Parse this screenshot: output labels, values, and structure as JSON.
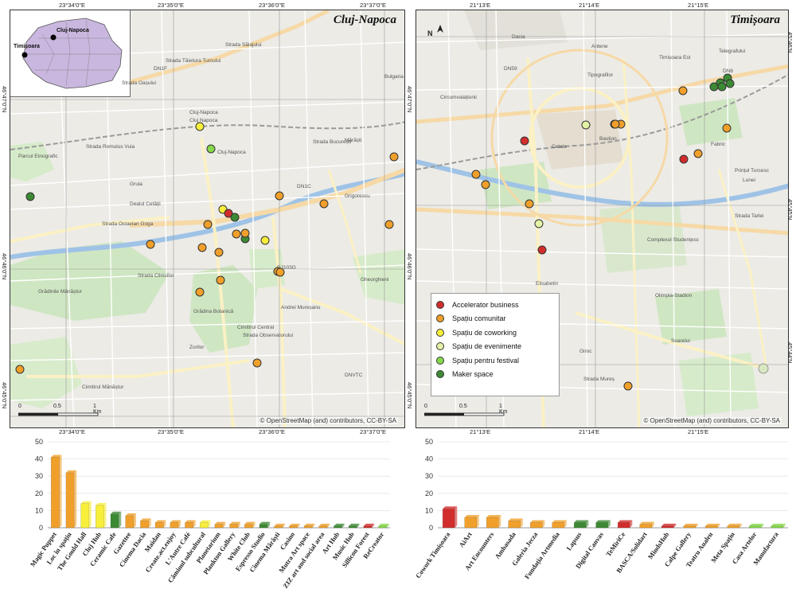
{
  "left_map": {
    "title": "Cluj-Napoca",
    "credit": "© OpenStreetMap (and) contributors, CC-BY-SA",
    "top_coords": [
      "23°34'0\"E",
      "23°35'0\"E",
      "23°36'0\"E",
      "23°37'0\"E"
    ],
    "bottom_coords": [
      "23°34'0\"E",
      "23°35'0\"E",
      "23°36'0\"E",
      "23°37'0\"E"
    ],
    "left_coords": [
      "46°47'0\"N",
      "46°46'0\"N",
      "46°45'0\"N"
    ],
    "right_coords": [
      "46°47'0\"N",
      "46°46'0\"N",
      "46°45'0\"N"
    ],
    "scale_labels": [
      "0",
      "0.5",
      "1 Km"
    ],
    "inset": {
      "label_cluj": "Cluj-Napoca",
      "label_timisoara": "Timișoara"
    },
    "street_labels": [
      "Bulgaria",
      "Strada Sălajului",
      "Strada Tăietura Turcului",
      "DN1F",
      "Strada Oașului",
      "Cluj-Napoca",
      "Cluj Napoca",
      "Strada Romulus Vuia",
      "Mărăști",
      "Strada București",
      "Cluj-Napoca",
      "DN1C",
      "Grigorescu",
      "Strada Octavian Goga",
      "Grădinile Mănăștur",
      "Strada Clinicilor",
      "Cimitirul Central",
      "Gheorghieni",
      "Andrei Mureșanu",
      "Grădina Botanică",
      "Zorilor",
      "Cimitirul Mănăștur",
      "DNVTC",
      "DJ103G",
      "Strada Observatorului",
      "Gruia",
      "Dealul Cetății",
      "Parcul Etnografic"
    ],
    "points": [
      {
        "cat": "coworking"
      },
      {
        "cat": "festival"
      },
      {
        "cat": "spatiu"
      },
      {
        "cat": "maker"
      },
      {
        "cat": "spatiu"
      },
      {
        "cat": "coworking"
      },
      {
        "cat": "accelerator"
      },
      {
        "cat": "maker"
      },
      {
        "cat": "spatiu"
      },
      {
        "cat": "spatiu"
      },
      {
        "cat": "spatiu"
      },
      {
        "cat": "spatiu"
      },
      {
        "cat": "maker"
      },
      {
        "cat": "coworking"
      },
      {
        "cat": "spatiu"
      },
      {
        "cat": "spatiu"
      },
      {
        "cat": "spatiu"
      },
      {
        "cat": "spatiu"
      },
      {
        "cat": "spatiu"
      },
      {
        "cat": "spatiu"
      },
      {
        "cat": "spatiu"
      },
      {
        "cat": "spatiu"
      },
      {
        "cat": "spatiu"
      },
      {
        "cat": "spatiu"
      }
    ]
  },
  "right_map": {
    "title": "Timișoara",
    "credit": "© OpenStreetMap (and) contributors, CC-BY-SA",
    "top_coords": [
      "21°13'E",
      "21°14'E",
      "21°15'E"
    ],
    "bottom_coords": [
      "21°13'E",
      "21°14'E",
      "21°15'E"
    ],
    "left_coords": [
      "45°46'N",
      "45°45'N",
      "45°44'N"
    ],
    "right_coords": [
      "45°46'N",
      "45°45'N",
      "45°44'N"
    ],
    "scale_labels": [
      "0",
      "0.5",
      "1 Km"
    ],
    "north_label": "N",
    "street_labels": [
      "Dacia",
      "Antene",
      "Timișoara Est",
      "Telegrafului",
      "DN6",
      "Tipografilor",
      "DN59",
      "Circumvalațiunii",
      "Cetate",
      "Bastion",
      "Fabric",
      "Prințul Turcesc",
      "Lunei",
      "Complexul Studențesc",
      "Elisabetin",
      "Olimpia-Stadion",
      "Soarelui",
      "Giroc",
      "Strada Mureș",
      "Strada Tarlei"
    ],
    "legend": [
      {
        "label": "Accelerator business",
        "color": "#d12d2d"
      },
      {
        "label": "Spațiu comunitar",
        "color": "#f0a02a"
      },
      {
        "label": "Spațiu de coworking",
        "color": "#f7ef3a"
      },
      {
        "label": "Spațiu de evenimente",
        "color": "#e3f2a6"
      },
      {
        "label": "Spațiu pentru festival",
        "color": "#86d94a"
      },
      {
        "label": "Maker space",
        "color": "#3d8a34"
      }
    ],
    "points": [
      {
        "cat": "spatiu"
      },
      {
        "cat": "maker"
      },
      {
        "cat": "maker"
      },
      {
        "cat": "maker"
      },
      {
        "cat": "maker"
      },
      {
        "cat": "maker"
      },
      {
        "cat": "spatiu"
      },
      {
        "cat": "evenimente"
      },
      {
        "cat": "spatiu"
      },
      {
        "cat": "spatiu"
      },
      {
        "cat": "accelerator"
      },
      {
        "cat": "spatiu"
      },
      {
        "cat": "accelerator"
      },
      {
        "cat": "spatiu"
      },
      {
        "cat": "spatiu"
      },
      {
        "cat": "spatiu"
      },
      {
        "cat": "evenimente"
      },
      {
        "cat": "accelerator"
      },
      {
        "cat": "spatiu"
      },
      {
        "cat": "spatiu"
      }
    ]
  },
  "chart_data": [
    {
      "type": "bar",
      "ylim": [
        0,
        50
      ],
      "yticks": [
        0,
        10,
        20,
        30,
        40,
        50
      ],
      "categories": [
        "Magic Puppet",
        "Loc în spațiu",
        "The Gould Hall",
        "Cluj Hub",
        "Ceramic Cafe",
        "Gazettee",
        "Cinema Dacia",
        "Maidan",
        "Create.act.enjoy",
        "L'Autre Café",
        "Căminul subcultural",
        "Planetarium",
        "Plankton Gallery",
        "White Club",
        "Espresso Studio",
        "Cinema Mărăști",
        "Casino",
        "Mutra Art space",
        "ZIZ art and social area",
        "Art Hub",
        "Music Hub",
        "Sillicon Forest",
        "ReCreator"
      ],
      "values": [
        41,
        32,
        14,
        13,
        8,
        7,
        4,
        3,
        3,
        3,
        3,
        2,
        2,
        2,
        2,
        1,
        1,
        1,
        1,
        1,
        1,
        1,
        1
      ],
      "colors": [
        "#f0a02a",
        "#f0a02a",
        "#f7ef3a",
        "#f7ef3a",
        "#3d8a34",
        "#f0a02a",
        "#f0a02a",
        "#f0a02a",
        "#f0a02a",
        "#f0a02a",
        "#f7ef3a",
        "#f0a02a",
        "#f0a02a",
        "#f0a02a",
        "#3d8a34",
        "#f0a02a",
        "#f0a02a",
        "#f0a02a",
        "#f0a02a",
        "#3d8a34",
        "#3d8a34",
        "#d12d2d",
        "#86d94a"
      ]
    },
    {
      "type": "bar",
      "ylim": [
        0,
        50
      ],
      "yticks": [
        0,
        10,
        20,
        30,
        40,
        50
      ],
      "categories": [
        "Cowork Timișoara",
        "AiArt",
        "Art Encounters",
        "Ambasada",
        "Galeria Jecza",
        "Fundația Artmedia",
        "Lapsus",
        "Digital Canvas",
        "TeMiriCe",
        "BASCA/Solidart",
        "MindsHub",
        "Calpe Gallery",
        "Teatru Aualeu",
        "Meta Spațiu",
        "Casa Artelor",
        "Manufactura"
      ],
      "values": [
        11,
        6,
        6,
        4,
        3,
        3,
        3,
        3,
        3,
        2,
        1,
        1,
        1,
        1,
        1,
        1
      ],
      "colors": [
        "#d12d2d",
        "#f0a02a",
        "#f0a02a",
        "#f0a02a",
        "#f0a02a",
        "#f0a02a",
        "#3d8a34",
        "#3d8a34",
        "#d12d2d",
        "#f0a02a",
        "#d12d2d",
        "#f0a02a",
        "#f0a02a",
        "#f0a02a",
        "#86d94a",
        "#86d94a"
      ]
    }
  ]
}
